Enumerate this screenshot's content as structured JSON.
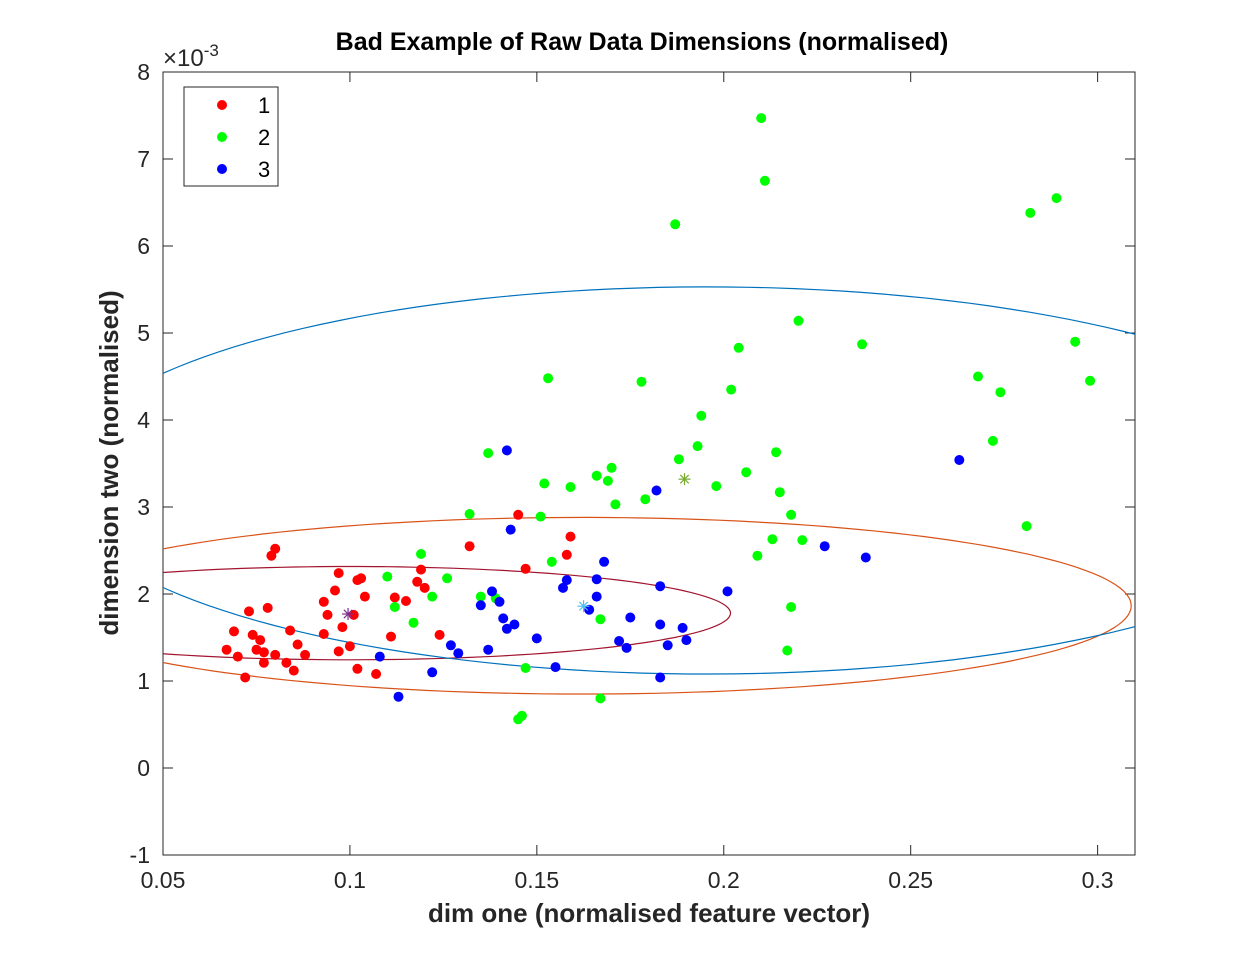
{
  "chart_data": {
    "type": "scatter",
    "title": "Bad Example of Raw Data Dimensions (normalised)",
    "xlabel": "dim one (normalised feature vector)",
    "ylabel": "dimension two (normalised)",
    "y_exponent": "×10",
    "y_exponent_power": "-3",
    "xlim": [
      0.05,
      0.31
    ],
    "ylim": [
      -1,
      8
    ],
    "xticks": [
      0.05,
      0.1,
      0.15,
      0.2,
      0.25,
      0.3
    ],
    "xtick_labels": [
      "0.05",
      "0.1",
      "0.15",
      "0.2",
      "0.25",
      "0.3"
    ],
    "yticks": [
      -1,
      0,
      1,
      2,
      3,
      4,
      5,
      6,
      7,
      8
    ],
    "ytick_labels": [
      "-1",
      "0",
      "1",
      "2",
      "3",
      "4",
      "5",
      "6",
      "7",
      "8"
    ],
    "grid": false,
    "legend_position": "top-left",
    "series": [
      {
        "name": "1",
        "color": "#ff0000",
        "points": [
          [
            0.067,
            1.36
          ],
          [
            0.069,
            1.57
          ],
          [
            0.07,
            1.28
          ],
          [
            0.072,
            1.04
          ],
          [
            0.073,
            1.8
          ],
          [
            0.074,
            1.53
          ],
          [
            0.075,
            1.36
          ],
          [
            0.076,
            1.47
          ],
          [
            0.077,
            1.33
          ],
          [
            0.077,
            1.21
          ],
          [
            0.078,
            1.84
          ],
          [
            0.079,
            2.44
          ],
          [
            0.08,
            2.52
          ],
          [
            0.08,
            1.3
          ],
          [
            0.083,
            1.21
          ],
          [
            0.084,
            1.58
          ],
          [
            0.085,
            1.12
          ],
          [
            0.086,
            1.42
          ],
          [
            0.088,
            1.3
          ],
          [
            0.093,
            1.91
          ],
          [
            0.093,
            1.54
          ],
          [
            0.094,
            1.76
          ],
          [
            0.096,
            2.04
          ],
          [
            0.097,
            1.34
          ],
          [
            0.097,
            2.24
          ],
          [
            0.098,
            1.62
          ],
          [
            0.1,
            1.4
          ],
          [
            0.101,
            1.76
          ],
          [
            0.102,
            2.16
          ],
          [
            0.102,
            1.14
          ],
          [
            0.103,
            2.18
          ],
          [
            0.104,
            1.97
          ],
          [
            0.107,
            1.08
          ],
          [
            0.111,
            1.51
          ],
          [
            0.112,
            1.96
          ],
          [
            0.115,
            1.92
          ],
          [
            0.118,
            2.14
          ],
          [
            0.119,
            2.28
          ],
          [
            0.12,
            2.07
          ],
          [
            0.124,
            1.53
          ],
          [
            0.132,
            2.55
          ],
          [
            0.145,
            2.91
          ],
          [
            0.147,
            2.29
          ],
          [
            0.158,
            2.45
          ],
          [
            0.159,
            2.66
          ]
        ]
      },
      {
        "name": "2",
        "color": "#00ff00",
        "points": [
          [
            0.11,
            2.2
          ],
          [
            0.112,
            1.85
          ],
          [
            0.117,
            1.67
          ],
          [
            0.119,
            2.46
          ],
          [
            0.122,
            1.97
          ],
          [
            0.126,
            2.18
          ],
          [
            0.132,
            2.92
          ],
          [
            0.135,
            1.97
          ],
          [
            0.137,
            3.62
          ],
          [
            0.139,
            1.95
          ],
          [
            0.145,
            0.56
          ],
          [
            0.146,
            0.6
          ],
          [
            0.147,
            1.15
          ],
          [
            0.151,
            2.89
          ],
          [
            0.152,
            3.27
          ],
          [
            0.153,
            4.48
          ],
          [
            0.154,
            2.37
          ],
          [
            0.159,
            3.23
          ],
          [
            0.166,
            3.36
          ],
          [
            0.167,
            0.8
          ],
          [
            0.167,
            1.71
          ],
          [
            0.169,
            3.3
          ],
          [
            0.17,
            3.45
          ],
          [
            0.171,
            3.03
          ],
          [
            0.178,
            4.44
          ],
          [
            0.179,
            3.09
          ],
          [
            0.187,
            6.25
          ],
          [
            0.188,
            3.55
          ],
          [
            0.193,
            3.7
          ],
          [
            0.194,
            4.05
          ],
          [
            0.198,
            3.24
          ],
          [
            0.202,
            4.35
          ],
          [
            0.204,
            4.83
          ],
          [
            0.206,
            3.4
          ],
          [
            0.209,
            2.44
          ],
          [
            0.21,
            7.47
          ],
          [
            0.211,
            6.75
          ],
          [
            0.213,
            2.63
          ],
          [
            0.214,
            3.63
          ],
          [
            0.215,
            3.17
          ],
          [
            0.217,
            1.35
          ],
          [
            0.218,
            2.91
          ],
          [
            0.218,
            1.85
          ],
          [
            0.22,
            5.14
          ],
          [
            0.221,
            2.62
          ],
          [
            0.237,
            4.87
          ],
          [
            0.268,
            4.5
          ],
          [
            0.272,
            3.76
          ],
          [
            0.274,
            4.32
          ],
          [
            0.281,
            2.78
          ],
          [
            0.282,
            6.38
          ],
          [
            0.289,
            6.55
          ],
          [
            0.294,
            4.9
          ],
          [
            0.298,
            4.45
          ]
        ]
      },
      {
        "name": "3",
        "color": "#0000ff",
        "points": [
          [
            0.108,
            1.28
          ],
          [
            0.113,
            0.82
          ],
          [
            0.122,
            1.1
          ],
          [
            0.127,
            1.41
          ],
          [
            0.129,
            1.32
          ],
          [
            0.135,
            1.87
          ],
          [
            0.137,
            1.36
          ],
          [
            0.138,
            2.03
          ],
          [
            0.14,
            1.91
          ],
          [
            0.141,
            1.72
          ],
          [
            0.142,
            1.6
          ],
          [
            0.142,
            3.65
          ],
          [
            0.143,
            2.74
          ],
          [
            0.144,
            1.65
          ],
          [
            0.15,
            1.49
          ],
          [
            0.155,
            1.16
          ],
          [
            0.157,
            2.07
          ],
          [
            0.158,
            2.16
          ],
          [
            0.164,
            1.82
          ],
          [
            0.166,
            1.97
          ],
          [
            0.166,
            2.17
          ],
          [
            0.168,
            2.37
          ],
          [
            0.172,
            1.46
          ],
          [
            0.174,
            1.38
          ],
          [
            0.175,
            1.73
          ],
          [
            0.182,
            3.19
          ],
          [
            0.183,
            2.09
          ],
          [
            0.183,
            1.65
          ],
          [
            0.183,
            1.04
          ],
          [
            0.185,
            1.41
          ],
          [
            0.189,
            1.61
          ],
          [
            0.19,
            1.47
          ],
          [
            0.201,
            2.03
          ],
          [
            0.227,
            2.55
          ],
          [
            0.238,
            2.42
          ],
          [
            0.263,
            3.54
          ]
        ]
      }
    ],
    "centroids": [
      {
        "x": 0.0995,
        "y": 1.77,
        "color": "#7e2f8e"
      },
      {
        "x": 0.1895,
        "y": 3.32,
        "color": "#77ac30"
      },
      {
        "x": 0.1625,
        "y": 1.86,
        "color": "#4dbeee"
      }
    ],
    "ellipses": [
      {
        "cx": 0.1,
        "cy": 1.78,
        "rx": 0.1018,
        "ry": 0.536,
        "angle_deg": 12.4,
        "color": "#a2142f"
      },
      {
        "cx": 0.1623,
        "cy": 1.865,
        "rx": 0.1467,
        "ry": 1.015,
        "angle_deg": 7.6,
        "color": "#d95319"
      },
      {
        "cx": 0.1955,
        "cy": 3.305,
        "rx": 0.1747,
        "ry": 2.225,
        "angle_deg": 14.3,
        "color": "#0072bd"
      }
    ]
  }
}
